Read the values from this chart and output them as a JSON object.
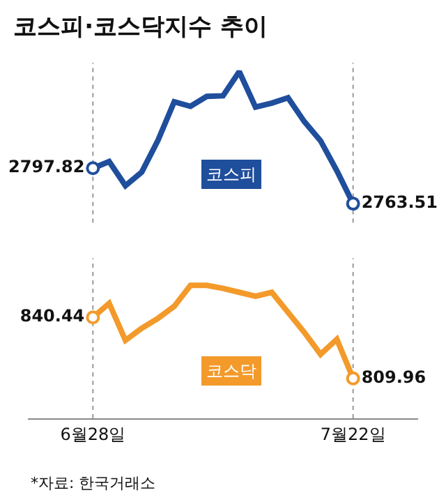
{
  "chart_data": [
    {
      "type": "line",
      "title": "코스피·코스닥지수 추이",
      "categories": [
        "6월28일",
        null,
        null,
        null,
        null,
        null,
        null,
        null,
        null,
        null,
        null,
        null,
        null,
        null,
        null,
        null,
        "7월22일"
      ],
      "series": [
        {
          "name": "코스피",
          "color": "#1f4e9c",
          "values": [
            2797.82,
            2804.3,
            2780.9,
            2794.0,
            2824.9,
            2862.2,
            2857.8,
            2867.4,
            2868.0,
            2891.4,
            2857.0,
            2860.9,
            2866.1,
            2843.0,
            2824.4,
            2795.5,
            2763.51
          ],
          "value_labels": [
            "2797.82",
            null,
            null,
            null,
            null,
            null,
            null,
            null,
            null,
            null,
            null,
            null,
            null,
            null,
            null,
            null,
            "2763.51"
          ]
        }
      ],
      "ylim": [
        2745,
        2900
      ],
      "tick_labels": false,
      "grid": false,
      "ref_lines": [
        {
          "axis": "x",
          "value": "6월28일",
          "color": "#999999",
          "line_style": "dotted"
        },
        {
          "axis": "x",
          "value": "7월22일",
          "color": "#999999",
          "line_style": "dotted"
        }
      ]
    },
    {
      "type": "line",
      "categories": [
        "6월28일",
        null,
        null,
        null,
        null,
        null,
        null,
        null,
        null,
        null,
        null,
        null,
        null,
        null,
        null,
        null,
        "7월22일"
      ],
      "series": [
        {
          "name": "코스닥",
          "color": "#f39a2b",
          "values": [
            840.44,
            847.5,
            829.0,
            835.0,
            840.0,
            846.0,
            856.5,
            856.5,
            855.0,
            853.0,
            851.0,
            853.0,
            843.0,
            833.0,
            822.0,
            829.5,
            809.96
          ],
          "value_labels": [
            "840.44",
            null,
            null,
            null,
            null,
            null,
            null,
            null,
            null,
            null,
            null,
            null,
            null,
            null,
            null,
            null,
            "809.96"
          ]
        }
      ],
      "ylim": [
        790,
        870
      ],
      "tick_labels": "x",
      "grid": false,
      "ref_lines": [
        {
          "axis": "x",
          "value": "6월28일",
          "color": "#999999",
          "line_style": "dotted"
        },
        {
          "axis": "x",
          "value": "7월22일",
          "color": "#999999",
          "line_style": "dotted"
        }
      ],
      "annotations": [
        "*자료: 한국거래소"
      ]
    }
  ]
}
